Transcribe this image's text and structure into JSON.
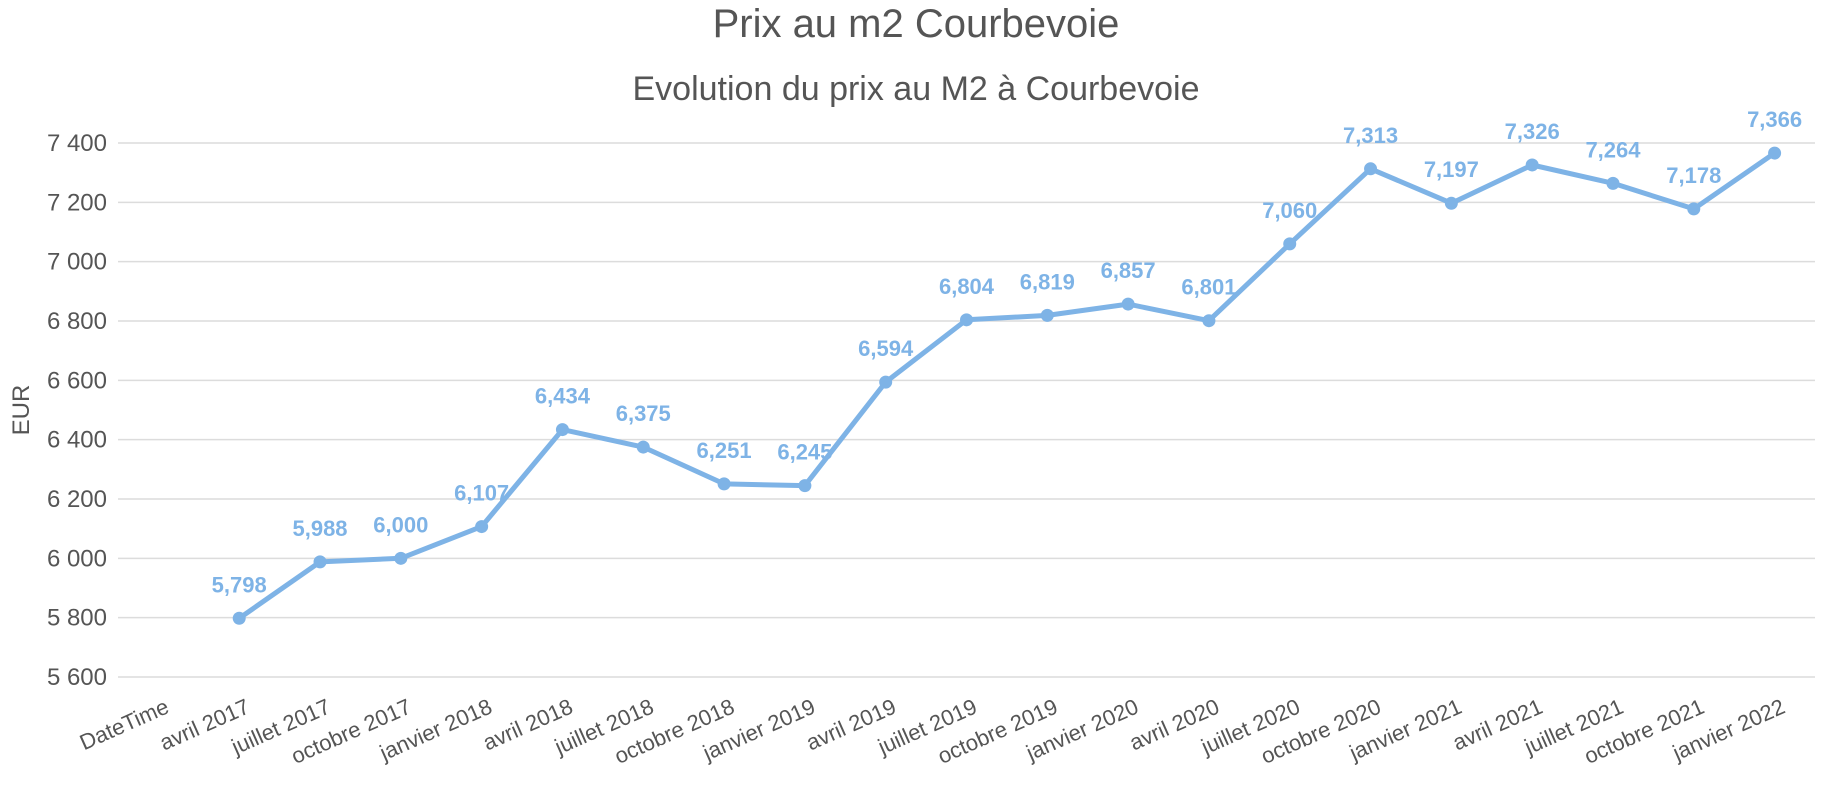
{
  "chart_data": {
    "type": "line",
    "title": "Prix au m2 Courbevoie",
    "subtitle": "Evolution du prix au M2 à Courbevoie",
    "ylabel": "EUR",
    "xlabel": "",
    "categories": [
      "DateTime",
      "avril 2017",
      "juillet 2017",
      "octobre 2017",
      "janvier 2018",
      "avril 2018",
      "juillet 2018",
      "octobre 2018",
      "janvier 2019",
      "avril 2019",
      "juillet 2019",
      "octobre 2019",
      "janvier 2020",
      "avril 2020",
      "juillet 2020",
      "octobre 2020",
      "janvier 2021",
      "avril 2021",
      "juillet 2021",
      "octobre 2021",
      "janvier 2022"
    ],
    "series": [
      {
        "values": [
          null,
          5798,
          5988,
          6000,
          6107,
          6434,
          6375,
          6251,
          6245,
          6594,
          6804,
          6819,
          6857,
          6801,
          7060,
          7313,
          7197,
          7326,
          7264,
          7178,
          7366
        ]
      }
    ],
    "data_labels": [
      "",
      "5,798",
      "5,988",
      "6,000",
      "6,107",
      "6,434",
      "6,375",
      "6,251",
      "6,245",
      "6,594",
      "6,804",
      "6,819",
      "6,857",
      "6,801",
      "7,060",
      "7,313",
      "7,197",
      "7,326",
      "7,264",
      "7,178",
      "7,366"
    ],
    "ylim": [
      5600,
      7400
    ],
    "yticks": [
      5600,
      5800,
      6000,
      6200,
      6400,
      6600,
      6800,
      7000,
      7200,
      7400
    ],
    "ytick_labels": [
      "5 600",
      "5 800",
      "6 000",
      "6 200",
      "6 400",
      "6 600",
      "6 800",
      "7 000",
      "7 200",
      "7 400"
    ],
    "grid": true,
    "legend": "none",
    "color": "#7eb3e6"
  }
}
